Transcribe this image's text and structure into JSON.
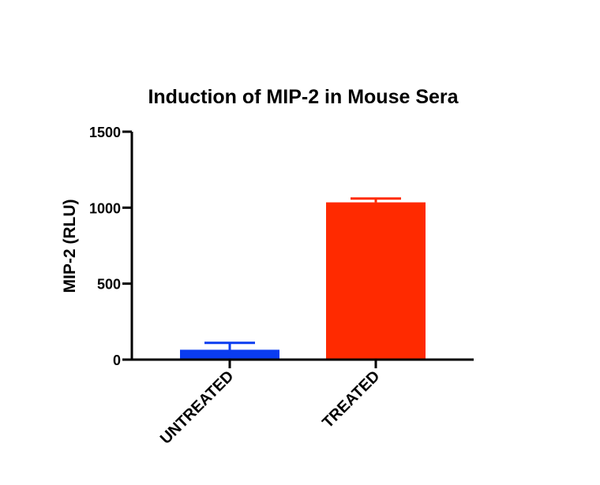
{
  "chart_data": {
    "type": "bar",
    "title": "Induction of MIP-2 in Mouse Sera",
    "xlabel": "",
    "ylabel": "MIP-2 (RLU)",
    "categories": [
      "UNTREATED",
      "TREATED"
    ],
    "values": [
      65,
      1035
    ],
    "error_upper": [
      110,
      1060
    ],
    "colors": [
      "#0a3cf0",
      "#ff2a00"
    ],
    "ylim": [
      0,
      1500
    ],
    "yticks": [
      0,
      500,
      1000,
      1500
    ],
    "ytick_labels": [
      "0",
      "500",
      "1000",
      "1500"
    ],
    "grid": false,
    "legend": "none"
  }
}
